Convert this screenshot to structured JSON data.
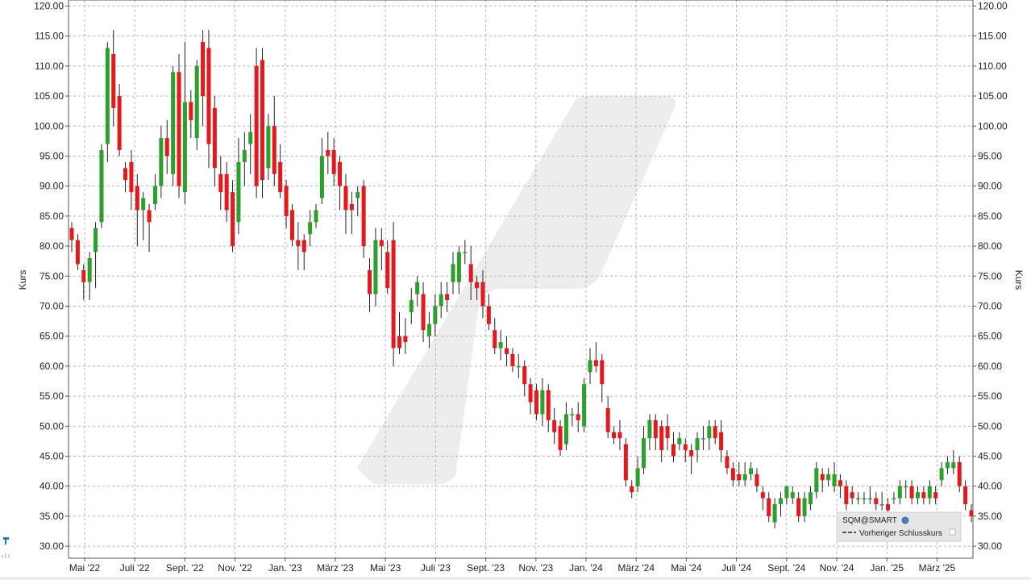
{
  "chart_data": {
    "type": "candlestick",
    "ylabel_left": "Kurs",
    "ylabel_right": "Kurs",
    "ylim": [
      28,
      121
    ],
    "y_ticks": [
      "30.00",
      "35.00",
      "40.00",
      "45.00",
      "50.00",
      "55.00",
      "60.00",
      "65.00",
      "70.00",
      "75.00",
      "80.00",
      "85.00",
      "90.00",
      "95.00",
      "100.00",
      "105.00",
      "110.00",
      "115.00",
      "120.00"
    ],
    "x_ticks": [
      "Mai '22",
      "Juli '22",
      "Sept. '22",
      "Nov. '22",
      "Jan. '23",
      "März '23",
      "Mai '23",
      "Juli '23",
      "Sept. '23",
      "Nov. '23",
      "Jan. '24",
      "März '24",
      "Mai '24",
      "Juli '24",
      "Sept. '24",
      "Nov. '24",
      "Jan. '25",
      "März '25"
    ],
    "grid": true,
    "legend": {
      "position": "bottom-right",
      "series_name": "SQM@SMART",
      "prev_close_label": "Vorheriger Schlusskurs"
    },
    "colors": {
      "up": "#2ca02c",
      "down": "#e3191e",
      "grid": "#b4b4b4",
      "watermark": "#e6e6e6"
    },
    "candles": [
      [
        83,
        81,
        84,
        79
      ],
      [
        81,
        77,
        82,
        76
      ],
      [
        76,
        74,
        77,
        71
      ],
      [
        74,
        78,
        79,
        71
      ],
      [
        79,
        83,
        84,
        73
      ],
      [
        84,
        96,
        97,
        83
      ],
      [
        97,
        113,
        114,
        94
      ],
      [
        112,
        103,
        116,
        100
      ],
      [
        105,
        96,
        107,
        95
      ],
      [
        93,
        91,
        94,
        89
      ],
      [
        94,
        89,
        96,
        86
      ],
      [
        90,
        86,
        92,
        80
      ],
      [
        86,
        88,
        89,
        81
      ],
      [
        86,
        84,
        87,
        79
      ],
      [
        87,
        90,
        92,
        86
      ],
      [
        90,
        98,
        100,
        88
      ],
      [
        98,
        95,
        101,
        92
      ],
      [
        92,
        109,
        110,
        90
      ],
      [
        109,
        90,
        112,
        88
      ],
      [
        89,
        104,
        114,
        87
      ],
      [
        104,
        101,
        106,
        98
      ],
      [
        98,
        110,
        111,
        96
      ],
      [
        114,
        105,
        116,
        100
      ],
      [
        113,
        97,
        116,
        93
      ],
      [
        103,
        93,
        105,
        90
      ],
      [
        92,
        89,
        95,
        86
      ],
      [
        92,
        86,
        94,
        84
      ],
      [
        89,
        80,
        91,
        79
      ],
      [
        84,
        94,
        98,
        82
      ],
      [
        94,
        96,
        99,
        90
      ],
      [
        97,
        99,
        102,
        92
      ],
      [
        110,
        90,
        113,
        88
      ],
      [
        111,
        91,
        113,
        88
      ],
      [
        93,
        100,
        102,
        91
      ],
      [
        100,
        92,
        105,
        90
      ],
      [
        94,
        89,
        97,
        88
      ],
      [
        90,
        85,
        91,
        83
      ],
      [
        86,
        81,
        87,
        80
      ],
      [
        81,
        80,
        84,
        76
      ],
      [
        81,
        79,
        82,
        76
      ],
      [
        82,
        84,
        86,
        80
      ],
      [
        84,
        86,
        87,
        83
      ],
      [
        88,
        95,
        98,
        87
      ],
      [
        96,
        95,
        99,
        92
      ],
      [
        96,
        92,
        98,
        90
      ],
      [
        94,
        90,
        95,
        86
      ],
      [
        90,
        86,
        92,
        82
      ],
      [
        87,
        86,
        89,
        82
      ],
      [
        88,
        89,
        90,
        85
      ],
      [
        90,
        80,
        91,
        78
      ],
      [
        76,
        72,
        78,
        69
      ],
      [
        72,
        81,
        83,
        70
      ],
      [
        81,
        80,
        83,
        76
      ],
      [
        79,
        73,
        81,
        72
      ],
      [
        81,
        63,
        84,
        60
      ],
      [
        65,
        63,
        69,
        62
      ],
      [
        65,
        64,
        68,
        62
      ],
      [
        69,
        71,
        73,
        67
      ],
      [
        72,
        74,
        75,
        70
      ],
      [
        72,
        66,
        74,
        64
      ],
      [
        65,
        67,
        69,
        63
      ],
      [
        67,
        70,
        72,
        65
      ],
      [
        70,
        72,
        74,
        68
      ],
      [
        72,
        71,
        74,
        69
      ],
      [
        74,
        77,
        79,
        72
      ],
      [
        74,
        79,
        80,
        72
      ],
      [
        79,
        79,
        81,
        77
      ],
      [
        77,
        74,
        80,
        71
      ],
      [
        74,
        73,
        75,
        71
      ],
      [
        74,
        70,
        76,
        68
      ],
      [
        70,
        67,
        72,
        66
      ],
      [
        66,
        63,
        68,
        62
      ],
      [
        63,
        64,
        66,
        61
      ],
      [
        63,
        62,
        65,
        60
      ],
      [
        62,
        60,
        63,
        59
      ],
      [
        60,
        60,
        62,
        58
      ],
      [
        60,
        57,
        61,
        55
      ],
      [
        57,
        54,
        58,
        52
      ],
      [
        56,
        52,
        57,
        51
      ],
      [
        52,
        56,
        58,
        50
      ],
      [
        56,
        51,
        57,
        49
      ],
      [
        51,
        49,
        53,
        47
      ],
      [
        50,
        46,
        51,
        45
      ],
      [
        47,
        52,
        54,
        46
      ],
      [
        52,
        52,
        53,
        50
      ],
      [
        52,
        51,
        54,
        49
      ],
      [
        50,
        57,
        58,
        49
      ],
      [
        59,
        61,
        63,
        57
      ],
      [
        61,
        60,
        64,
        59
      ],
      [
        61,
        57,
        62,
        54
      ],
      [
        53,
        49,
        55,
        48
      ],
      [
        49,
        48,
        50,
        47
      ],
      [
        49,
        48,
        51,
        46
      ],
      [
        47,
        41,
        48,
        40
      ],
      [
        40,
        39,
        41,
        38
      ],
      [
        40,
        43,
        45,
        39
      ],
      [
        43,
        48,
        50,
        42
      ],
      [
        48,
        51,
        52,
        46
      ],
      [
        51,
        48,
        52,
        46
      ],
      [
        50,
        46,
        51,
        44
      ],
      [
        50,
        48,
        52,
        46
      ],
      [
        47,
        45,
        49,
        44
      ],
      [
        47,
        48,
        49,
        46
      ],
      [
        47,
        46,
        48,
        44
      ],
      [
        46,
        45,
        47,
        42
      ],
      [
        46,
        48,
        49,
        44
      ],
      [
        48,
        48,
        50,
        46
      ],
      [
        48,
        50,
        51,
        46
      ],
      [
        50,
        48,
        51,
        47
      ],
      [
        49,
        46,
        51,
        44
      ],
      [
        45,
        43,
        46,
        42
      ],
      [
        43,
        41,
        44,
        40
      ],
      [
        42,
        41,
        44,
        40
      ],
      [
        41,
        42,
        44,
        40
      ],
      [
        42,
        43,
        44,
        41
      ],
      [
        42,
        40,
        43,
        39
      ],
      [
        39,
        38,
        40,
        36
      ],
      [
        38,
        35,
        39,
        34
      ],
      [
        34,
        37,
        38,
        33
      ],
      [
        37,
        38,
        39,
        35
      ],
      [
        38,
        40,
        40,
        37
      ],
      [
        38,
        39,
        40,
        37
      ],
      [
        38,
        35,
        39,
        34
      ],
      [
        35,
        38,
        39,
        34
      ],
      [
        37,
        39,
        40,
        36
      ],
      [
        39,
        43,
        44,
        38
      ],
      [
        42,
        41,
        43,
        39
      ],
      [
        41,
        42,
        43,
        40
      ],
      [
        40,
        42,
        44,
        39
      ],
      [
        41,
        40,
        42,
        38
      ],
      [
        40,
        37,
        41,
        36
      ],
      [
        39,
        38,
        40,
        37
      ],
      [
        38,
        38,
        39,
        37
      ],
      [
        38,
        38,
        39,
        37
      ],
      [
        38,
        38,
        40,
        37
      ],
      [
        38,
        37,
        39,
        36
      ],
      [
        37,
        37,
        39,
        36
      ],
      [
        37,
        36,
        38,
        35
      ],
      [
        38,
        38,
        39,
        37
      ],
      [
        38,
        40,
        41,
        37
      ],
      [
        40,
        40,
        41,
        38
      ],
      [
        40,
        38,
        41,
        37
      ],
      [
        38,
        39,
        40,
        37
      ],
      [
        39,
        38,
        40,
        37
      ],
      [
        38,
        40,
        41,
        37
      ],
      [
        39,
        38,
        40,
        37
      ],
      [
        41,
        43,
        44,
        40
      ],
      [
        43,
        44,
        45,
        42
      ],
      [
        43,
        44,
        46,
        42
      ],
      [
        44,
        40,
        45,
        39
      ],
      [
        40,
        37,
        41,
        36
      ],
      [
        36,
        35,
        37,
        34
      ]
    ]
  }
}
